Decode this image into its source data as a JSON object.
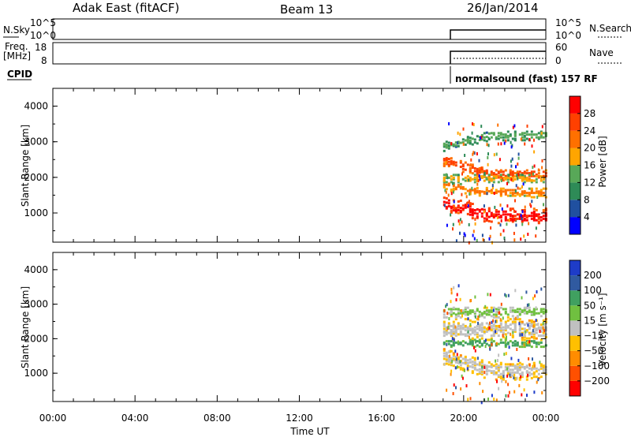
{
  "header": {
    "station": "Adak East (fitACF)",
    "beam": "Beam 13",
    "date": "26/Jan/2014"
  },
  "status_panels": {
    "nsky_label": "N.Sky",
    "nsearch_label": "N.Search",
    "nsky_ticks": [
      "10^5",
      "10^0"
    ],
    "freq_label": "Freq.",
    "freq_unit": "[MHz]",
    "freq_ticks": [
      "18",
      "8"
    ],
    "nave_label": "Nave",
    "nave_ticks": [
      "60",
      "0"
    ],
    "cpid_label": "CPID",
    "cpid_text": "normalsound (fast) 157 RF"
  },
  "colors": {
    "power_scale": [
      "#0000ff",
      "#2050a0",
      "#2e8b57",
      "#58a858",
      "#ffa500",
      "#ff7000",
      "#ff4000",
      "#ff0000"
    ],
    "velocity_scale": [
      "#ff0000",
      "#ff5000",
      "#ff8c00",
      "#ffc000",
      "#c0c0c0",
      "#70c040",
      "#40a060",
      "#305aa0",
      "#1e3cc8"
    ]
  },
  "chart_data": [
    {
      "type": "heatmap",
      "title": "",
      "ylabel": "Slant Range [km]",
      "yticks": [
        "4000",
        "3000",
        "2000",
        "1000"
      ],
      "ylim": [
        180,
        4500
      ],
      "xlim_hours": [
        0,
        24
      ],
      "data_start_ut": "19:00",
      "colorbar_label": "Power [dB]",
      "colorbar_ticks": [
        "28",
        "24",
        "20",
        "16",
        "12",
        "8",
        "4"
      ],
      "bands": [
        {
          "start_km": 1300,
          "end_km": 950,
          "thickness_km": 400,
          "level": 7
        },
        {
          "start_km": 2500,
          "end_km": 2100,
          "thickness_km": 300,
          "level": 6
        },
        {
          "start_km": 1800,
          "end_km": 1600,
          "thickness_km": 250,
          "level": 5
        },
        {
          "start_km": 2900,
          "end_km": 3200,
          "thickness_km": 250,
          "level": 3
        },
        {
          "start_km": 2000,
          "end_km": 2000,
          "thickness_km": 200,
          "level": 4
        }
      ]
    },
    {
      "type": "heatmap",
      "title": "",
      "ylabel": "Slant Range [km]",
      "yticks": [
        "4000",
        "3000",
        "2000",
        "1000"
      ],
      "ylim": [
        180,
        4500
      ],
      "xlim_hours": [
        0,
        24
      ],
      "data_start_ut": "19:00",
      "colorbar_label": "Velocity [m s⁻¹]",
      "colorbar_ticks": [
        "200",
        "100",
        "50",
        "15",
        "−15",
        "−50",
        "−100",
        "−200"
      ],
      "bands": [
        {
          "start_km": 1500,
          "end_km": 1100,
          "thickness_km": 500,
          "level": 4
        },
        {
          "start_km": 2300,
          "end_km": 2300,
          "thickness_km": 600,
          "level": 4
        },
        {
          "start_km": 2800,
          "end_km": 2800,
          "thickness_km": 300,
          "level": 5
        },
        {
          "start_km": 1900,
          "end_km": 1900,
          "thickness_km": 200,
          "level": 6
        }
      ]
    }
  ],
  "xaxis": {
    "ticks": [
      "00:00",
      "04:00",
      "08:00",
      "12:00",
      "16:00",
      "20:00",
      "00:00"
    ],
    "label": "Time UT"
  }
}
